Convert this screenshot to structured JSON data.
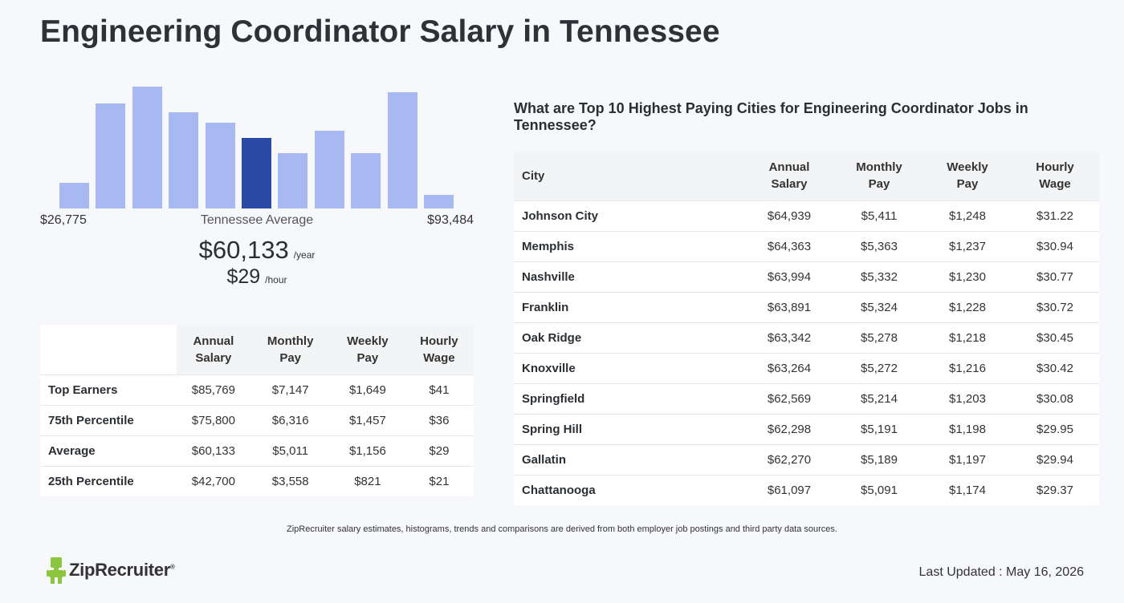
{
  "title": "Engineering Coordinator Salary in Tennessee",
  "colors": {
    "bar": "#a8b8f0",
    "bar_highlight": "#2a4aa5",
    "logo_green": "#8cc63f"
  },
  "chart_data": {
    "type": "bar",
    "values": [
      17,
      69,
      80,
      63,
      56,
      46,
      36,
      51,
      36,
      76,
      9
    ],
    "highlight_index": 5,
    "min_label": "$26,775",
    "max_label": "$93,484",
    "center_label": "Tennessee Average"
  },
  "average": {
    "yearly": "$60,133",
    "yearly_unit": "/year",
    "hourly": "$29",
    "hourly_unit": "/hour"
  },
  "percentiles": {
    "headers": [
      [
        "Annual",
        "Salary"
      ],
      [
        "Monthly",
        "Pay"
      ],
      [
        "Weekly",
        "Pay"
      ],
      [
        "Hourly",
        "Wage"
      ]
    ],
    "rows": [
      {
        "label": "Top Earners",
        "annual": "$85,769",
        "monthly": "$7,147",
        "weekly": "$1,649",
        "hourly": "$41"
      },
      {
        "label": "75th Percentile",
        "annual": "$75,800",
        "monthly": "$6,316",
        "weekly": "$1,457",
        "hourly": "$36"
      },
      {
        "label": "Average",
        "annual": "$60,133",
        "monthly": "$5,011",
        "weekly": "$1,156",
        "hourly": "$29"
      },
      {
        "label": "25th Percentile",
        "annual": "$42,700",
        "monthly": "$3,558",
        "weekly": "$821",
        "hourly": "$21"
      }
    ]
  },
  "cities": {
    "heading": "What are Top 10 Highest Paying Cities for Engineering Coordinator Jobs in Tennessee?",
    "city_header": "City",
    "headers": [
      [
        "Annual",
        "Salary"
      ],
      [
        "Monthly",
        "Pay"
      ],
      [
        "Weekly",
        "Pay"
      ],
      [
        "Hourly",
        "Wage"
      ]
    ],
    "rows": [
      {
        "city": "Johnson City",
        "annual": "$64,939",
        "monthly": "$5,411",
        "weekly": "$1,248",
        "hourly": "$31.22"
      },
      {
        "city": "Memphis",
        "annual": "$64,363",
        "monthly": "$5,363",
        "weekly": "$1,237",
        "hourly": "$30.94"
      },
      {
        "city": "Nashville",
        "annual": "$63,994",
        "monthly": "$5,332",
        "weekly": "$1,230",
        "hourly": "$30.77"
      },
      {
        "city": "Franklin",
        "annual": "$63,891",
        "monthly": "$5,324",
        "weekly": "$1,228",
        "hourly": "$30.72"
      },
      {
        "city": "Oak Ridge",
        "annual": "$63,342",
        "monthly": "$5,278",
        "weekly": "$1,218",
        "hourly": "$30.45"
      },
      {
        "city": "Knoxville",
        "annual": "$63,264",
        "monthly": "$5,272",
        "weekly": "$1,216",
        "hourly": "$30.42"
      },
      {
        "city": "Springfield",
        "annual": "$62,569",
        "monthly": "$5,214",
        "weekly": "$1,203",
        "hourly": "$30.08"
      },
      {
        "city": "Spring Hill",
        "annual": "$62,298",
        "monthly": "$5,191",
        "weekly": "$1,198",
        "hourly": "$29.95"
      },
      {
        "city": "Gallatin",
        "annual": "$62,270",
        "monthly": "$5,189",
        "weekly": "$1,197",
        "hourly": "$29.94"
      },
      {
        "city": "Chattanooga",
        "annual": "$61,097",
        "monthly": "$5,091",
        "weekly": "$1,174",
        "hourly": "$29.37"
      }
    ]
  },
  "footnote": "ZipRecruiter salary estimates, histograms, trends and comparisons are derived from both employer job postings and third party data sources.",
  "logo": {
    "text": "ZipRecruiter",
    "mark": "®",
    "icon": "ziprecruiter-mascot-icon"
  },
  "last_updated": "Last Updated : May 16, 2026"
}
